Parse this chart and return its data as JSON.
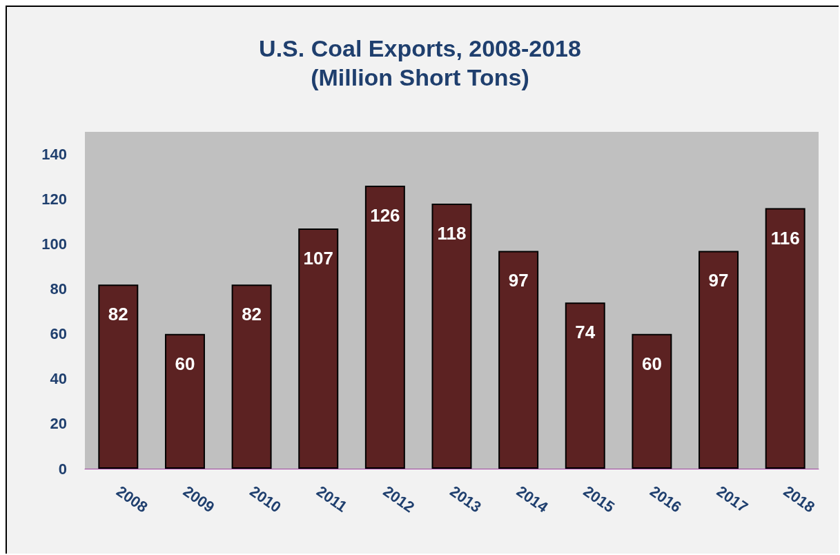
{
  "chart_data": {
    "type": "bar",
    "title": "U.S. Coal Exports, 2008-2018\n(Million Short Tons)",
    "categories": [
      "2008",
      "2009",
      "2010",
      "2011",
      "2012",
      "2013",
      "2014",
      "2015",
      "2016",
      "2017",
      "2018"
    ],
    "values": [
      82,
      60,
      82,
      107,
      126,
      118,
      97,
      74,
      60,
      97,
      116
    ],
    "color": "#5c2222",
    "ylim": [
      0,
      150
    ],
    "yticks": [
      0,
      20,
      40,
      60,
      80,
      100,
      120,
      140
    ],
    "grid": false,
    "data_labels": true
  }
}
